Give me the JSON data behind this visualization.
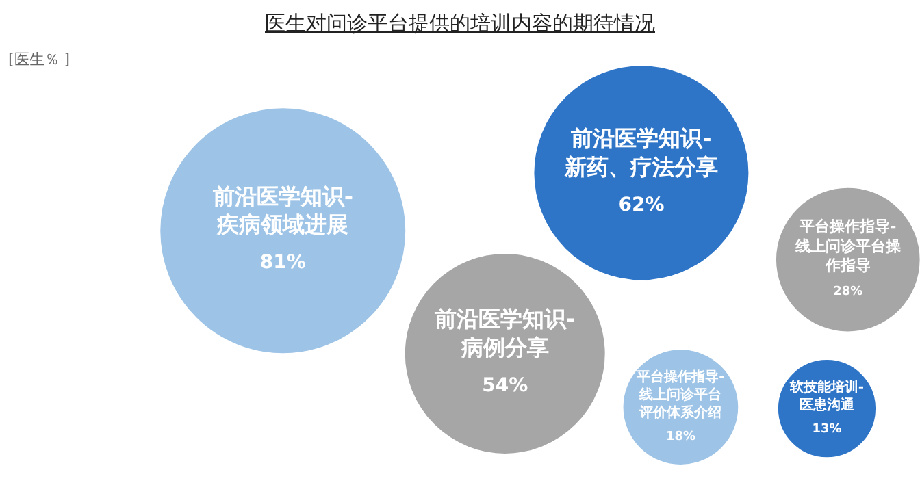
{
  "chart_data": {
    "type": "other",
    "title": "医生对问诊平台提供的培训内容的期待情况",
    "annotations": [
      "[医生％ ]"
    ],
    "categories": [
      "前沿医学知识-疾病领域进展",
      "前沿医学知识-新药、疗法分享",
      "平台操作指导-线上问诊平台操作指导",
      "前沿医学知识-病例分享",
      "平台操作指导-线上问诊平台评价体系介绍",
      "软技能培训-医患沟通"
    ],
    "values": [
      81,
      62,
      28,
      54,
      18,
      13
    ],
    "value_labels": [
      "81%",
      "62%",
      "28%",
      "54%",
      "18%",
      "13%"
    ],
    "colors": [
      "#9dc3e6",
      "#2e75c8",
      "#a6a6a6",
      "#a6a6a6",
      "#9dc3e6",
      "#2e75c8"
    ],
    "data_labels": true
  }
}
